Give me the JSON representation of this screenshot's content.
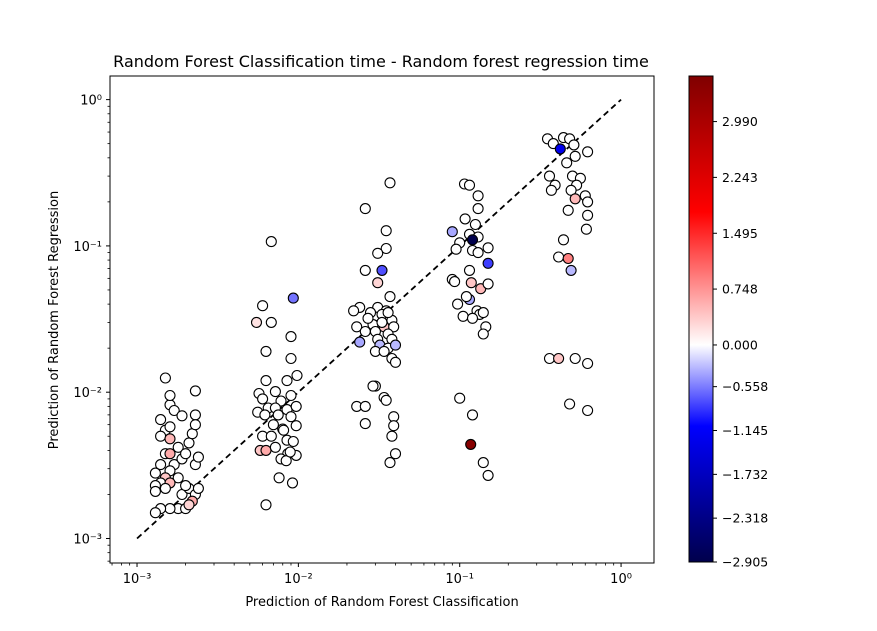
{
  "chart_data": {
    "type": "scatter",
    "title": "Random Forest Classification time - Random forest regression time",
    "xlabel": "Prediction of Random Forest Classification",
    "ylabel": "Prediction of Random Forest Regression",
    "xscale": "log",
    "yscale": "log",
    "xlim": [
      0.00068,
      1.6
    ],
    "ylim": [
      0.00068,
      1.45
    ],
    "x_ticks": [
      {
        "value": 0.001,
        "label": "10⁻³"
      },
      {
        "value": 0.01,
        "label": "10⁻²"
      },
      {
        "value": 0.1,
        "label": "10⁻¹"
      },
      {
        "value": 1,
        "label": "10⁰"
      }
    ],
    "y_ticks": [
      {
        "value": 0.001,
        "label": "10⁻³"
      },
      {
        "value": 0.01,
        "label": "10⁻²"
      },
      {
        "value": 0.1,
        "label": "10⁻¹"
      },
      {
        "value": 1,
        "label": "10⁰"
      }
    ],
    "reference_line": {
      "style": "dashed",
      "color": "#000000",
      "from": [
        0.001,
        0.001
      ],
      "to": [
        1,
        1
      ]
    },
    "colorbar": {
      "colormap": "seismic",
      "vmin": -2.905,
      "vmax": 3.6,
      "ticks": [
        "-2.905",
        "-2.318",
        "-1.732",
        "-1.145",
        "-0.558",
        "0.000",
        "0.748",
        "1.495",
        "2.243",
        "2.990"
      ]
    },
    "points": [
      [
        0.0015,
        0.0125,
        0
      ],
      [
        0.0016,
        0.0082,
        0
      ],
      [
        0.0017,
        0.0075,
        0
      ],
      [
        0.0014,
        0.0065,
        0
      ],
      [
        0.0019,
        0.0069,
        0
      ],
      [
        0.0015,
        0.0055,
        0
      ],
      [
        0.0016,
        0.0058,
        0
      ],
      [
        0.0014,
        0.005,
        0
      ],
      [
        0.0016,
        0.0048,
        0.5
      ],
      [
        0.0018,
        0.0042,
        0
      ],
      [
        0.0015,
        0.0038,
        0
      ],
      [
        0.0016,
        0.0038,
        0.6
      ],
      [
        0.0014,
        0.0032,
        0
      ],
      [
        0.0017,
        0.0032,
        0
      ],
      [
        0.0013,
        0.0028,
        0
      ],
      [
        0.0016,
        0.0029,
        0
      ],
      [
        0.0019,
        0.0035,
        0
      ],
      [
        0.002,
        0.0038,
        0
      ],
      [
        0.0021,
        0.0045,
        0
      ],
      [
        0.0022,
        0.0052,
        0
      ],
      [
        0.0015,
        0.0026,
        0.4
      ],
      [
        0.0018,
        0.0026,
        0
      ],
      [
        0.0014,
        0.0024,
        0
      ],
      [
        0.0013,
        0.0023,
        0
      ],
      [
        0.0016,
        0.0024,
        0.5
      ],
      [
        0.0013,
        0.0021,
        0
      ],
      [
        0.0015,
        0.0022,
        0
      ],
      [
        0.0019,
        0.002,
        0
      ],
      [
        0.0021,
        0.0022,
        0
      ],
      [
        0.0023,
        0.002,
        0
      ],
      [
        0.0024,
        0.0022,
        0
      ],
      [
        0.0022,
        0.0018,
        0.6
      ],
      [
        0.0018,
        0.0016,
        0
      ],
      [
        0.0016,
        0.0016,
        0
      ],
      [
        0.0014,
        0.0016,
        0
      ],
      [
        0.0013,
        0.0015,
        0
      ],
      [
        0.002,
        0.0016,
        0
      ],
      [
        0.0021,
        0.0017,
        0.3
      ],
      [
        0.0023,
        0.0032,
        0
      ],
      [
        0.0024,
        0.0036,
        0
      ],
      [
        0.0023,
        0.007,
        0
      ],
      [
        0.0023,
        0.006,
        0
      ],
      [
        0.0023,
        0.0102,
        0
      ],
      [
        0.0016,
        0.0095,
        0
      ],
      [
        0.002,
        0.0023,
        0
      ],
      [
        0.0068,
        0.107,
        0
      ],
      [
        0.0093,
        0.044,
        -0.8
      ],
      [
        0.006,
        0.039,
        0
      ],
      [
        0.0055,
        0.03,
        0.2
      ],
      [
        0.0068,
        0.03,
        0
      ],
      [
        0.009,
        0.024,
        0
      ],
      [
        0.0063,
        0.019,
        0
      ],
      [
        0.009,
        0.017,
        0
      ],
      [
        0.0098,
        0.013,
        0
      ],
      [
        0.0063,
        0.012,
        0
      ],
      [
        0.0085,
        0.012,
        0
      ],
      [
        0.0057,
        0.0098,
        0
      ],
      [
        0.0072,
        0.0101,
        0
      ],
      [
        0.006,
        0.009,
        0
      ],
      [
        0.0078,
        0.0087,
        0
      ],
      [
        0.009,
        0.0095,
        0
      ],
      [
        0.0065,
        0.0078,
        0
      ],
      [
        0.0072,
        0.0078,
        0
      ],
      [
        0.0085,
        0.0076,
        0
      ],
      [
        0.0097,
        0.008,
        0
      ],
      [
        0.0056,
        0.0073,
        0
      ],
      [
        0.0062,
        0.007,
        0
      ],
      [
        0.0075,
        0.007,
        0
      ],
      [
        0.009,
        0.0068,
        0
      ],
      [
        0.007,
        0.006,
        0
      ],
      [
        0.008,
        0.0056,
        0
      ],
      [
        0.0097,
        0.0059,
        0
      ],
      [
        0.006,
        0.005,
        0
      ],
      [
        0.0068,
        0.005,
        0
      ],
      [
        0.0085,
        0.0047,
        0
      ],
      [
        0.0093,
        0.0046,
        0
      ],
      [
        0.0058,
        0.004,
        0.4
      ],
      [
        0.0063,
        0.004,
        0.6
      ],
      [
        0.0072,
        0.0042,
        0
      ],
      [
        0.0086,
        0.0038,
        0
      ],
      [
        0.0097,
        0.0037,
        0
      ],
      [
        0.0078,
        0.0035,
        0
      ],
      [
        0.0084,
        0.0034,
        0
      ],
      [
        0.0076,
        0.0026,
        0
      ],
      [
        0.0092,
        0.0024,
        0
      ],
      [
        0.0063,
        0.0017,
        0
      ],
      [
        0.0089,
        0.0039,
        0
      ],
      [
        0.0081,
        0.0055,
        0
      ],
      [
        0.037,
        0.27,
        0
      ],
      [
        0.026,
        0.18,
        0
      ],
      [
        0.035,
        0.127,
        0
      ],
      [
        0.035,
        0.096,
        0
      ],
      [
        0.031,
        0.089,
        0
      ],
      [
        0.026,
        0.068,
        0
      ],
      [
        0.033,
        0.068,
        -1.0
      ],
      [
        0.031,
        0.056,
        0.3
      ],
      [
        0.037,
        0.045,
        0
      ],
      [
        0.024,
        0.038,
        0
      ],
      [
        0.022,
        0.036,
        0
      ],
      [
        0.031,
        0.038,
        0
      ],
      [
        0.035,
        0.036,
        0
      ],
      [
        0.028,
        0.035,
        0
      ],
      [
        0.033,
        0.034,
        0
      ],
      [
        0.038,
        0.031,
        0
      ],
      [
        0.023,
        0.028,
        0
      ],
      [
        0.029,
        0.029,
        0
      ],
      [
        0.034,
        0.028,
        0.4
      ],
      [
        0.039,
        0.028,
        0
      ],
      [
        0.026,
        0.026,
        0
      ],
      [
        0.03,
        0.026,
        0
      ],
      [
        0.036,
        0.025,
        0
      ],
      [
        0.024,
        0.022,
        -0.5
      ],
      [
        0.031,
        0.023,
        0
      ],
      [
        0.038,
        0.023,
        0
      ],
      [
        0.032,
        0.021,
        -0.4
      ],
      [
        0.036,
        0.02,
        0
      ],
      [
        0.04,
        0.021,
        -0.4
      ],
      [
        0.03,
        0.019,
        0
      ],
      [
        0.034,
        0.019,
        0
      ],
      [
        0.038,
        0.017,
        0
      ],
      [
        0.04,
        0.016,
        0
      ],
      [
        0.03,
        0.011,
        0
      ],
      [
        0.029,
        0.011,
        0
      ],
      [
        0.034,
        0.0092,
        0
      ],
      [
        0.035,
        0.0088,
        0
      ],
      [
        0.023,
        0.008,
        0
      ],
      [
        0.026,
        0.008,
        0
      ],
      [
        0.039,
        0.0068,
        0
      ],
      [
        0.026,
        0.0061,
        0
      ],
      [
        0.039,
        0.0059,
        0
      ],
      [
        0.038,
        0.005,
        0
      ],
      [
        0.04,
        0.0038,
        0
      ],
      [
        0.037,
        0.0033,
        0
      ],
      [
        0.033,
        0.03,
        0
      ],
      [
        0.027,
        0.032,
        0
      ],
      [
        0.036,
        0.035,
        0
      ],
      [
        0.107,
        0.265,
        0
      ],
      [
        0.115,
        0.26,
        0
      ],
      [
        0.13,
        0.22,
        0
      ],
      [
        0.13,
        0.18,
        0
      ],
      [
        0.108,
        0.153,
        0
      ],
      [
        0.125,
        0.14,
        0
      ],
      [
        0.09,
        0.125,
        -0.5
      ],
      [
        0.115,
        0.12,
        0
      ],
      [
        0.13,
        0.115,
        0
      ],
      [
        0.12,
        0.11,
        -2.9
      ],
      [
        0.1,
        0.105,
        0
      ],
      [
        0.15,
        0.097,
        0
      ],
      [
        0.095,
        0.095,
        0
      ],
      [
        0.12,
        0.093,
        0
      ],
      [
        0.13,
        0.09,
        0
      ],
      [
        0.15,
        0.076,
        -1.1
      ],
      [
        0.09,
        0.059,
        0
      ],
      [
        0.093,
        0.057,
        0
      ],
      [
        0.118,
        0.056,
        0.4
      ],
      [
        0.135,
        0.051,
        0.5
      ],
      [
        0.15,
        0.055,
        0
      ],
      [
        0.115,
        0.043,
        -0.5
      ],
      [
        0.097,
        0.04,
        0
      ],
      [
        0.128,
        0.036,
        0
      ],
      [
        0.105,
        0.033,
        0
      ],
      [
        0.133,
        0.034,
        0
      ],
      [
        0.14,
        0.035,
        0
      ],
      [
        0.145,
        0.028,
        0
      ],
      [
        0.14,
        0.025,
        0
      ],
      [
        0.1,
        0.0091,
        0
      ],
      [
        0.12,
        0.007,
        0
      ],
      [
        0.117,
        0.0044,
        3.5
      ],
      [
        0.14,
        0.0033,
        0
      ],
      [
        0.15,
        0.0027,
        0
      ],
      [
        0.12,
        0.032,
        0
      ],
      [
        0.115,
        0.068,
        0
      ],
      [
        0.11,
        0.045,
        0
      ],
      [
        0.35,
        0.54,
        0
      ],
      [
        0.44,
        0.55,
        0
      ],
      [
        0.48,
        0.54,
        0
      ],
      [
        0.38,
        0.5,
        0
      ],
      [
        0.42,
        0.46,
        -1.6
      ],
      [
        0.51,
        0.49,
        0
      ],
      [
        0.62,
        0.44,
        0
      ],
      [
        0.52,
        0.41,
        0
      ],
      [
        0.46,
        0.37,
        0
      ],
      [
        0.36,
        0.3,
        0
      ],
      [
        0.5,
        0.3,
        0
      ],
      [
        0.56,
        0.29,
        0
      ],
      [
        0.39,
        0.26,
        0
      ],
      [
        0.53,
        0.26,
        0
      ],
      [
        0.37,
        0.24,
        0
      ],
      [
        0.49,
        0.24,
        0
      ],
      [
        0.52,
        0.21,
        0.5
      ],
      [
        0.6,
        0.22,
        0
      ],
      [
        0.62,
        0.2,
        0
      ],
      [
        0.47,
        0.175,
        0
      ],
      [
        0.62,
        0.162,
        0
      ],
      [
        0.61,
        0.13,
        0
      ],
      [
        0.44,
        0.11,
        0
      ],
      [
        0.41,
        0.084,
        0
      ],
      [
        0.47,
        0.082,
        0.9
      ],
      [
        0.49,
        0.068,
        -0.4
      ],
      [
        0.36,
        0.017,
        0
      ],
      [
        0.41,
        0.017,
        0.4
      ],
      [
        0.52,
        0.017,
        0
      ],
      [
        0.62,
        0.0157,
        0
      ],
      [
        0.48,
        0.0083,
        0
      ],
      [
        0.62,
        0.0075,
        0
      ]
    ]
  }
}
